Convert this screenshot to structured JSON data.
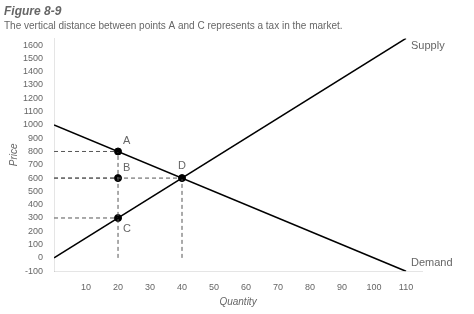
{
  "chart_data": {
    "type": "line",
    "title": "Figure 8-9",
    "subtitle": "The vertical distance between points A and C represents a tax in the market.",
    "x_label": "Quantity",
    "y_label": "Price",
    "series": [
      {
        "name": "Supply",
        "color": "#000000",
        "x": [
          0,
          110
        ],
        "values": [
          0,
          1650
        ]
      },
      {
        "name": "Demand",
        "color": "#000000",
        "x": [
          0,
          110
        ],
        "values": [
          1000,
          -100
        ]
      }
    ],
    "points": {
      "color": "#000000",
      "marker": "o",
      "labels": [
        "A",
        "B",
        "C",
        "D"
      ],
      "x": [
        20,
        20,
        20,
        40
      ],
      "values": [
        800,
        600,
        300,
        600
      ]
    },
    "reference_lines": {
      "color": "#555555",
      "line_style": "dashed",
      "lines": [
        {
          "x": [
            0,
            20
          ],
          "y": [
            800,
            800
          ]
        },
        {
          "x": [
            20,
            20
          ],
          "y": [
            0,
            800
          ]
        },
        {
          "x": [
            0,
            20
          ],
          "y": [
            600,
            600
          ]
        },
        {
          "x": [
            0,
            20
          ],
          "y": [
            300,
            300
          ]
        },
        {
          "x": [
            0,
            40
          ],
          "y": [
            600,
            600
          ]
        },
        {
          "x": [
            40,
            40
          ],
          "y": [
            0,
            600
          ]
        }
      ]
    },
    "xlim": [
      0,
      115
    ],
    "xticks": [
      10,
      20,
      30,
      40,
      50,
      60,
      70,
      80,
      90,
      100,
      110
    ],
    "ylim": [
      -100,
      1650
    ],
    "yticks": [
      -100,
      0,
      100,
      200,
      300,
      400,
      500,
      600,
      700,
      800,
      900,
      1000,
      1100,
      1200,
      1300,
      1400,
      1500,
      1600
    ],
    "grid": false
  }
}
